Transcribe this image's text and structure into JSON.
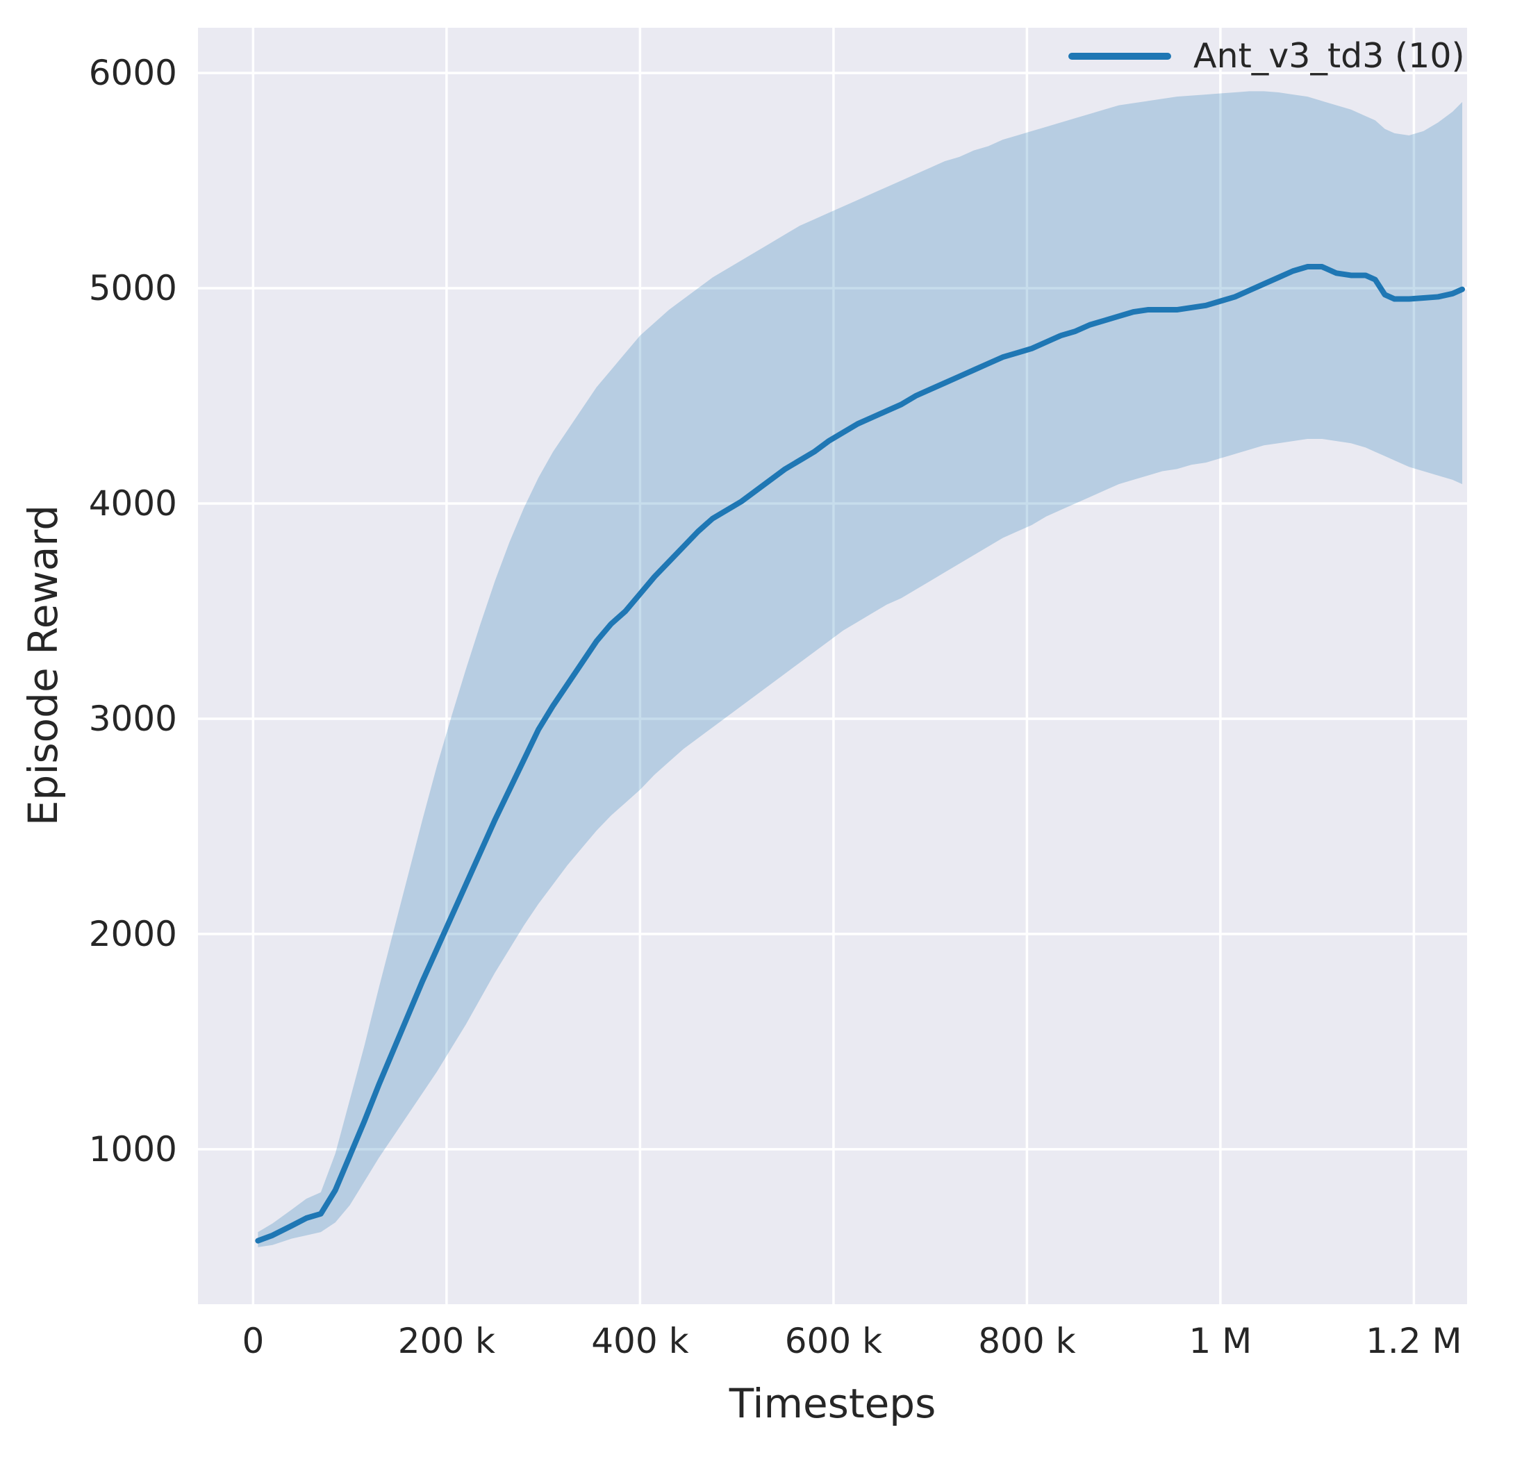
{
  "figure": {
    "background": "#ffffff",
    "plot_background": "#eaeaf2",
    "grid_color": "#ffffff",
    "text_color": "#262626"
  },
  "chart_data": {
    "type": "line",
    "title": "",
    "xlabel": "Timesteps",
    "ylabel": "Episode Reward",
    "legend_position": "upper right",
    "grid": true,
    "axes": {
      "area": {
        "l": 285,
        "t": 40,
        "r": 2112,
        "b": 1878
      },
      "xlim": [
        -57000,
        1255000
      ],
      "ylim": [
        280,
        6210
      ],
      "x_ticks": [
        {
          "value": 0,
          "label": "0"
        },
        {
          "value": 200000,
          "label": "200 k"
        },
        {
          "value": 400000,
          "label": "400 k"
        },
        {
          "value": 600000,
          "label": "600 k"
        },
        {
          "value": 800000,
          "label": "800 k"
        },
        {
          "value": 1000000,
          "label": "1 M"
        },
        {
          "value": 1200000,
          "label": "1.2 M"
        }
      ],
      "y_ticks": [
        {
          "value": 1000,
          "label": "1000"
        },
        {
          "value": 2000,
          "label": "2000"
        },
        {
          "value": 3000,
          "label": "3000"
        },
        {
          "value": 4000,
          "label": "4000"
        },
        {
          "value": 5000,
          "label": "5000"
        },
        {
          "value": 6000,
          "label": "6000"
        }
      ]
    },
    "series": [
      {
        "name": "Ant_v3_td3 (10)",
        "color": "#1f77b4",
        "band_opacity": 0.25,
        "line_width": 8,
        "x": [
          5000,
          20000,
          40000,
          55000,
          70000,
          85000,
          100000,
          115000,
          130000,
          145000,
          160000,
          175000,
          190000,
          205000,
          220000,
          235000,
          250000,
          265000,
          280000,
          295000,
          310000,
          325000,
          340000,
          355000,
          370000,
          385000,
          400000,
          415000,
          430000,
          445000,
          460000,
          475000,
          490000,
          505000,
          520000,
          535000,
          550000,
          565000,
          580000,
          595000,
          610000,
          625000,
          640000,
          655000,
          670000,
          685000,
          700000,
          715000,
          730000,
          745000,
          760000,
          775000,
          790000,
          805000,
          820000,
          835000,
          850000,
          865000,
          880000,
          895000,
          910000,
          925000,
          940000,
          955000,
          970000,
          985000,
          1000000,
          1015000,
          1030000,
          1045000,
          1060000,
          1075000,
          1090000,
          1105000,
          1120000,
          1135000,
          1150000,
          1160000,
          1170000,
          1180000,
          1195000,
          1210000,
          1225000,
          1240000,
          1250000
        ],
        "mean": [
          575,
          600,
          645,
          680,
          700,
          810,
          970,
          1130,
          1300,
          1460,
          1620,
          1780,
          1930,
          2080,
          2230,
          2380,
          2530,
          2670,
          2810,
          2950,
          3060,
          3160,
          3260,
          3360,
          3440,
          3500,
          3580,
          3660,
          3730,
          3800,
          3870,
          3930,
          3970,
          4010,
          4060,
          4110,
          4160,
          4200,
          4240,
          4290,
          4330,
          4370,
          4400,
          4430,
          4460,
          4500,
          4530,
          4560,
          4590,
          4620,
          4650,
          4680,
          4700,
          4720,
          4750,
          4780,
          4800,
          4830,
          4850,
          4870,
          4890,
          4900,
          4900,
          4900,
          4910,
          4920,
          4940,
          4960,
          4990,
          5020,
          5050,
          5080,
          5100,
          5100,
          5070,
          5060,
          5060,
          5040,
          4970,
          4950,
          4950,
          4955,
          4960,
          4975,
          4995
        ],
        "lower": [
          545,
          555,
          585,
          600,
          615,
          660,
          740,
          850,
          960,
          1060,
          1160,
          1260,
          1360,
          1470,
          1580,
          1700,
          1820,
          1930,
          2040,
          2140,
          2230,
          2320,
          2400,
          2480,
          2550,
          2610,
          2670,
          2740,
          2800,
          2860,
          2910,
          2960,
          3010,
          3060,
          3110,
          3160,
          3210,
          3260,
          3310,
          3360,
          3410,
          3450,
          3490,
          3530,
          3560,
          3600,
          3640,
          3680,
          3720,
          3760,
          3800,
          3840,
          3870,
          3900,
          3940,
          3970,
          4000,
          4030,
          4060,
          4090,
          4110,
          4130,
          4150,
          4160,
          4180,
          4190,
          4210,
          4230,
          4250,
          4270,
          4280,
          4290,
          4300,
          4300,
          4290,
          4280,
          4260,
          4240,
          4220,
          4200,
          4170,
          4150,
          4130,
          4110,
          4090
        ],
        "upper": [
          615,
          655,
          720,
          770,
          800,
          980,
          1230,
          1480,
          1750,
          2010,
          2270,
          2530,
          2780,
          3010,
          3230,
          3440,
          3640,
          3820,
          3980,
          4120,
          4240,
          4340,
          4440,
          4540,
          4620,
          4700,
          4780,
          4840,
          4900,
          4950,
          5000,
          5050,
          5090,
          5130,
          5170,
          5210,
          5250,
          5290,
          5320,
          5350,
          5380,
          5410,
          5440,
          5470,
          5500,
          5530,
          5560,
          5590,
          5610,
          5640,
          5660,
          5690,
          5710,
          5730,
          5750,
          5770,
          5790,
          5810,
          5830,
          5850,
          5860,
          5870,
          5880,
          5890,
          5895,
          5900,
          5905,
          5910,
          5915,
          5915,
          5910,
          5900,
          5890,
          5870,
          5850,
          5830,
          5800,
          5780,
          5740,
          5720,
          5710,
          5730,
          5770,
          5820,
          5865
        ]
      }
    ]
  }
}
